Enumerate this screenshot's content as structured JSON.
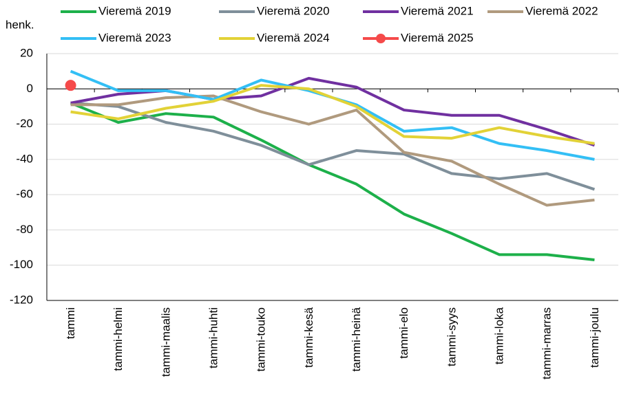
{
  "chart_data": {
    "type": "line",
    "y_label": "henk.",
    "categories": [
      "tammi",
      "tammi-helmi",
      "tammi-maalis",
      "tammi-huhti",
      "tammi-touko",
      "tammi-kesä",
      "tammi-heinä",
      "tammi-elo",
      "tammi-syys",
      "tammi-loka",
      "tammi-marras",
      "tammi-joulu"
    ],
    "series": [
      {
        "name": "Vieremä 2019",
        "color": "#1db04a",
        "values": [
          -8,
          -19,
          -14,
          -16,
          -29,
          -43,
          -54,
          -71,
          -82,
          -94,
          -94,
          -97
        ]
      },
      {
        "name": "Vieremä 2020",
        "color": "#7f8f9a",
        "values": [
          -8,
          -10,
          -19,
          -24,
          -32,
          -43,
          -35,
          -37,
          -48,
          -51,
          -48,
          -57
        ]
      },
      {
        "name": "Vieremä 2021",
        "color": "#7030a0",
        "values": [
          -8,
          -3,
          -1,
          -6,
          -4,
          6,
          1,
          -12,
          -15,
          -15,
          -23,
          -32
        ]
      },
      {
        "name": "Vieremä 2022",
        "color": "#b09a7e",
        "values": [
          -9,
          -9,
          -5,
          -4,
          -13,
          -20,
          -12,
          -36,
          -41,
          -54,
          -66,
          -63
        ]
      },
      {
        "name": "Vieremä 2023",
        "color": "#33bff5",
        "values": [
          10,
          -1,
          -1,
          -6,
          5,
          -1,
          -9,
          -24,
          -22,
          -31,
          -35,
          -40
        ]
      },
      {
        "name": "Vieremä 2024",
        "color": "#e2d237",
        "values": [
          -13,
          -17,
          -11,
          -7,
          2,
          0,
          -10,
          -27,
          -28,
          -22,
          -27,
          -31
        ]
      },
      {
        "name": "Vieremä 2025",
        "color": "#f54a4a",
        "marker": true,
        "values": [
          2,
          null,
          null,
          null,
          null,
          null,
          null,
          null,
          null,
          null,
          null,
          null
        ]
      }
    ],
    "ylim": [
      -120,
      20
    ],
    "yticks": [
      -120,
      -100,
      -80,
      -60,
      -40,
      -20,
      0,
      20
    ],
    "grid": true
  }
}
